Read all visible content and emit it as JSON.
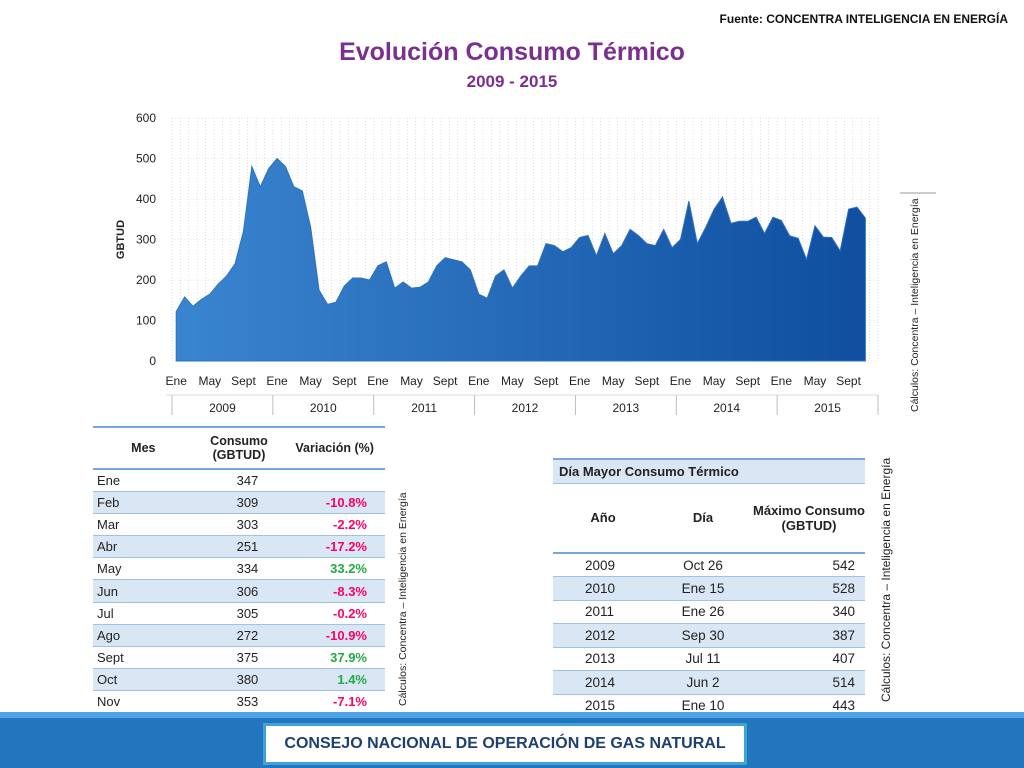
{
  "header": {
    "source": "Fuente: CONCENTRA INTELIGENCIA EN ENERGÍA",
    "title": "Evolución Consumo Térmico",
    "subtitle": "2009 - 2015"
  },
  "chart_data": {
    "type": "area",
    "ylabel": "GBTUD",
    "ylim": [
      0,
      600
    ],
    "yticks": [
      0,
      100,
      200,
      300,
      400,
      500,
      600
    ],
    "month_tick_labels": [
      "Ene",
      "May",
      "Sept"
    ],
    "years": [
      "2009",
      "2010",
      "2011",
      "2012",
      "2013",
      "2014",
      "2015"
    ],
    "grid": true,
    "color": "#1f5ea8",
    "series": [
      {
        "values": [
          122,
          158,
          135,
          152,
          165,
          190,
          210,
          240,
          320,
          480,
          430,
          475,
          500,
          480,
          430,
          420,
          330,
          175,
          140,
          145,
          185,
          205,
          205,
          200,
          235,
          245,
          180,
          195,
          180,
          182,
          195,
          235,
          255,
          250,
          245,
          225,
          165,
          155,
          210,
          225,
          180,
          210,
          235,
          235,
          290,
          285,
          270,
          280,
          305,
          310,
          260,
          315,
          265,
          285,
          325,
          310,
          290,
          285,
          325,
          280,
          300,
          395,
          290,
          330,
          375,
          405,
          340,
          345,
          345,
          355,
          315,
          355,
          347,
          309,
          303,
          251,
          334,
          306,
          305,
          272,
          375,
          380,
          353
        ]
      }
    ]
  },
  "notes": {
    "calc_chart": "Cálculos: Concentra – Inteligencia en Energía",
    "calc_monthly": "Cálculos: Concentra – Inteligencia en Energía",
    "calc_max": "Cálculos: Concentra – Inteligencia en Energía"
  },
  "monthly_table": {
    "headers": [
      "Mes",
      "Consumo (GBTUD)",
      "Variación (%)"
    ],
    "rows": [
      {
        "mes": "Ene",
        "consumo": "347",
        "variacion": ""
      },
      {
        "mes": "Feb",
        "consumo": "309",
        "variacion": "-10.8%"
      },
      {
        "mes": "Mar",
        "consumo": "303",
        "variacion": "-2.2%"
      },
      {
        "mes": "Abr",
        "consumo": "251",
        "variacion": "-17.2%"
      },
      {
        "mes": "May",
        "consumo": "334",
        "variacion": "33.2%"
      },
      {
        "mes": "Jun",
        "consumo": "306",
        "variacion": "-8.3%"
      },
      {
        "mes": "Jul",
        "consumo": "305",
        "variacion": "-0.2%"
      },
      {
        "mes": "Ago",
        "consumo": "272",
        "variacion": "-10.9%"
      },
      {
        "mes": "Sept",
        "consumo": "375",
        "variacion": "37.9%"
      },
      {
        "mes": "Oct",
        "consumo": "380",
        "variacion": "1.4%"
      },
      {
        "mes": "Nov",
        "consumo": "353",
        "variacion": "-7.1%"
      }
    ]
  },
  "max_table": {
    "caption": "Día Mayor Consumo Térmico",
    "headers": [
      "Año",
      "Día",
      "Máximo Consumo (GBTUD)"
    ],
    "rows": [
      {
        "anio": "2009",
        "dia": "Oct 26",
        "max": "542"
      },
      {
        "anio": "2010",
        "dia": "Ene 15",
        "max": "528"
      },
      {
        "anio": "2011",
        "dia": "Ene 26",
        "max": "340"
      },
      {
        "anio": "2012",
        "dia": "Sep 30",
        "max": "387"
      },
      {
        "anio": "2013",
        "dia": "Jul 11",
        "max": "407"
      },
      {
        "anio": "2014",
        "dia": "Jun 2",
        "max": "514"
      },
      {
        "anio": "2015",
        "dia": "Ene 10",
        "max": "443"
      }
    ]
  },
  "footer": {
    "label": "CONSEJO NACIONAL DE OPERACIÓN DE GAS NATURAL"
  }
}
